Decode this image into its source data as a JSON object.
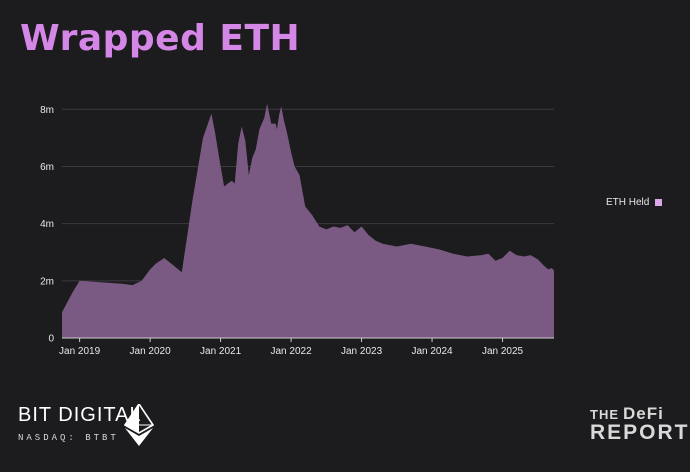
{
  "title": "Wrapped ETH",
  "colors": {
    "background": "#1c1b1e",
    "title": "#d487e6",
    "area_fill": "#7a5a82",
    "grid": "#3b3a3f",
    "legend_swatch": "#d9a6e8"
  },
  "chart_data": {
    "type": "area",
    "title": "",
    "xlabel": "",
    "ylabel": "",
    "grid": true,
    "legend_placement": "right",
    "ylim": [
      0,
      8.5
    ],
    "y_unit": "m",
    "y_ticks": [
      0,
      2,
      4,
      6,
      8
    ],
    "y_tick_labels": [
      "0",
      "2m",
      "4m",
      "6m",
      "8m"
    ],
    "x_ticks": [
      2019,
      2020,
      2021,
      2022,
      2023,
      2024,
      2025
    ],
    "x_tick_labels": [
      "Jan 2019",
      "Jan 2020",
      "Jan 2021",
      "Jan 2022",
      "Jan 2023",
      "Jan 2024",
      "Jan 2025"
    ],
    "xlim": [
      2018.75,
      2025.73
    ],
    "series": [
      {
        "name": "ETH Held",
        "x": [
          2018.75,
          2018.9,
          2019.0,
          2019.3,
          2019.6,
          2019.75,
          2019.88,
          2020.0,
          2020.08,
          2020.2,
          2020.35,
          2020.45,
          2020.6,
          2020.75,
          2020.87,
          2020.92,
          2020.98,
          2021.05,
          2021.1,
          2021.16,
          2021.2,
          2021.25,
          2021.3,
          2021.35,
          2021.4,
          2021.45,
          2021.5,
          2021.55,
          2021.62,
          2021.66,
          2021.72,
          2021.78,
          2021.8,
          2021.83,
          2021.86,
          2021.9,
          2021.94,
          2022.0,
          2022.05,
          2022.12,
          2022.2,
          2022.3,
          2022.4,
          2022.5,
          2022.6,
          2022.7,
          2022.8,
          2022.9,
          2023.0,
          2023.1,
          2023.2,
          2023.3,
          2023.5,
          2023.7,
          2023.9,
          2024.1,
          2024.3,
          2024.5,
          2024.7,
          2024.8,
          2024.9,
          2025.0,
          2025.1,
          2025.2,
          2025.3,
          2025.4,
          2025.5,
          2025.6,
          2025.65,
          2025.7,
          2025.73
        ],
        "values": [
          0.9,
          1.6,
          2.0,
          1.95,
          1.9,
          1.85,
          2.0,
          2.4,
          2.6,
          2.8,
          2.5,
          2.3,
          4.8,
          7.0,
          7.85,
          7.2,
          6.3,
          5.3,
          5.4,
          5.5,
          5.4,
          6.8,
          7.4,
          6.9,
          5.7,
          6.3,
          6.6,
          7.3,
          7.7,
          8.2,
          7.5,
          7.5,
          7.3,
          7.8,
          8.1,
          7.6,
          7.2,
          6.5,
          6.0,
          5.7,
          4.6,
          4.3,
          3.9,
          3.8,
          3.9,
          3.85,
          3.95,
          3.7,
          3.9,
          3.6,
          3.4,
          3.3,
          3.2,
          3.3,
          3.2,
          3.1,
          2.95,
          2.85,
          2.9,
          2.95,
          2.7,
          2.8,
          3.05,
          2.9,
          2.85,
          2.9,
          2.75,
          2.5,
          2.4,
          2.45,
          2.35
        ]
      }
    ]
  },
  "legend": {
    "label": "ETH Held",
    "swatch_color": "#d9a6e8"
  },
  "branding": {
    "left_name": "BIT DIGITAL",
    "left_sub": "NASDAQ: BTBT",
    "left_icon": "ethereum-icon",
    "right_the": "THE",
    "right_defi": "DeFi",
    "right_report": "REPORT"
  }
}
